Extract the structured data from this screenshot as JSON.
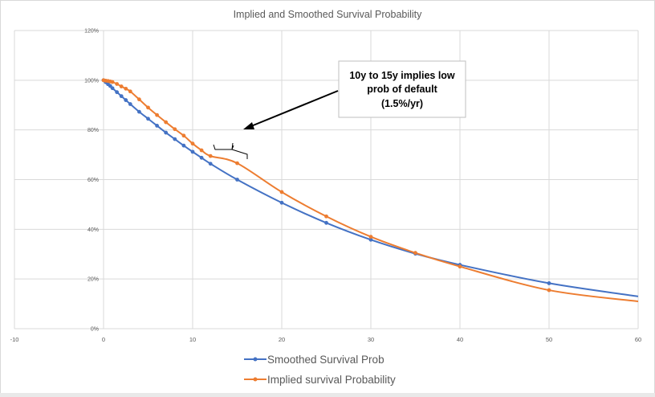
{
  "chart_data": {
    "type": "line",
    "title": "Implied and Smoothed Survival Probability",
    "xlim": [
      -10,
      60
    ],
    "ylim": [
      0,
      1.2
    ],
    "x_ticks": [
      -10,
      0,
      10,
      20,
      30,
      40,
      50,
      60
    ],
    "x_tick_labels": [
      "-10",
      "0",
      "10",
      "20",
      "30",
      "40",
      "50",
      "60"
    ],
    "y_ticks": [
      0,
      0.2,
      0.4,
      0.6,
      0.8,
      1.0,
      1.2
    ],
    "y_tick_labels": [
      "0%",
      "20%",
      "40%",
      "60%",
      "80%",
      "100%",
      "120%"
    ],
    "grid": true,
    "legend_position": "bottom",
    "series": [
      {
        "name": "Smoothed Survival Prob",
        "color": "#4472c4",
        "x": [
          0,
          0.25,
          0.5,
          0.75,
          1,
          1.5,
          2,
          2.5,
          3,
          4,
          5,
          6,
          7,
          8,
          9,
          10,
          11,
          12,
          15,
          20,
          25,
          30,
          35,
          40,
          50,
          60
        ],
        "y": [
          1.0,
          0.992,
          0.984,
          0.977,
          0.968,
          0.952,
          0.936,
          0.92,
          0.904,
          0.873,
          0.845,
          0.817,
          0.789,
          0.763,
          0.737,
          0.712,
          0.688,
          0.664,
          0.6,
          0.507,
          0.426,
          0.358,
          0.302,
          0.257,
          0.183,
          0.13
        ]
      },
      {
        "name": "Implied survival Probability",
        "color": "#ed7d31",
        "x": [
          0,
          0.25,
          0.5,
          0.75,
          1,
          1.5,
          2,
          2.5,
          3,
          4,
          5,
          6,
          7,
          8,
          9,
          10,
          11,
          12,
          15,
          20,
          25,
          30,
          35,
          40,
          50,
          60
        ],
        "y": [
          1.0,
          0.998,
          0.997,
          0.995,
          0.993,
          0.985,
          0.975,
          0.966,
          0.955,
          0.923,
          0.89,
          0.86,
          0.831,
          0.803,
          0.777,
          0.745,
          0.718,
          0.695,
          0.666,
          0.55,
          0.452,
          0.37,
          0.305,
          0.25,
          0.155,
          0.11
        ]
      }
    ],
    "annotation": {
      "lines": [
        "10y to 15y implies low",
        "prob of default",
        "(1.5%/yr)"
      ]
    }
  }
}
